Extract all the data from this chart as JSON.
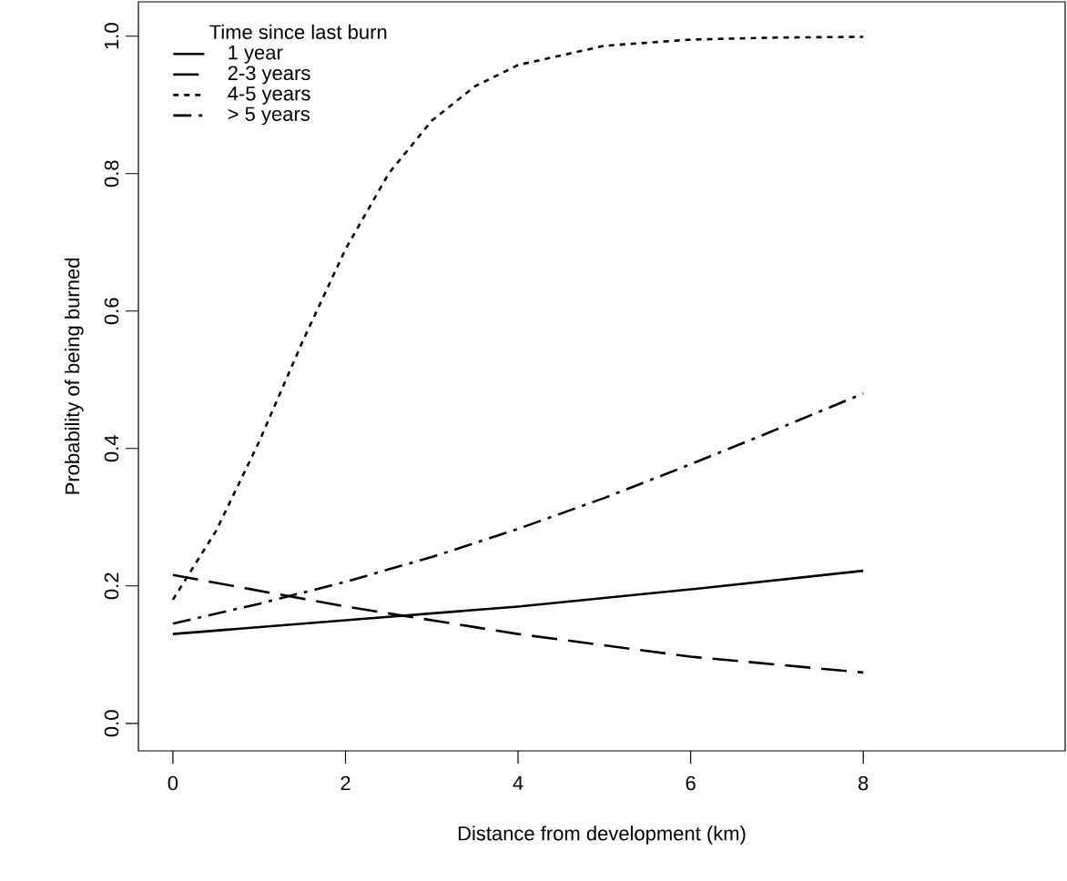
{
  "chart_data": {
    "type": "line",
    "xlabel": "Distance from development (km)",
    "ylabel": "Probability of being burned",
    "legend_title": "Time since last burn",
    "legend": "top left",
    "grid": false,
    "xlim": [
      -0.4,
      10.34
    ],
    "ylim": [
      -0.04,
      1.05
    ],
    "xticks": [
      0,
      2,
      4,
      6,
      8
    ],
    "yticks": [
      {
        "value": 0,
        "label": "0.0"
      },
      {
        "value": 0.2,
        "label": "0.2"
      },
      {
        "value": 0.4,
        "label": "0.4"
      },
      {
        "value": 0.6,
        "label": "0.6"
      },
      {
        "value": 0.8,
        "label": "0.8"
      },
      {
        "value": 1,
        "label": "1.0"
      }
    ],
    "series": [
      {
        "name": "1 year",
        "color": "#000000",
        "line_style": "solid",
        "x": [
          0,
          2,
          4,
          6,
          8
        ],
        "values": [
          0.13,
          0.15,
          0.17,
          0.195,
          0.222
        ]
      },
      {
        "name": "2-3 years",
        "color": "#000000",
        "line_style": "dashed",
        "x": [
          0,
          2,
          4,
          6,
          8
        ],
        "values": [
          0.216,
          0.17,
          0.13,
          0.097,
          0.074
        ]
      },
      {
        "name": "4-5 years",
        "color": "#000000",
        "line_style": "dotted",
        "x": [
          0,
          0.5,
          1,
          1.5,
          2,
          2.5,
          3,
          3.5,
          4,
          5,
          6,
          7,
          8
        ],
        "values": [
          0.18,
          0.28,
          0.41,
          0.555,
          0.69,
          0.8,
          0.877,
          0.927,
          0.958,
          0.986,
          0.995,
          0.998,
          0.999
        ]
      },
      {
        "name": "> 5 years",
        "color": "#000000",
        "line_style": "dashdot",
        "x": [
          0,
          1,
          2,
          3,
          4,
          5,
          6,
          7,
          8
        ],
        "values": [
          0.145,
          0.174,
          0.206,
          0.242,
          0.283,
          0.328,
          0.377,
          0.428,
          0.48
        ]
      }
    ]
  }
}
